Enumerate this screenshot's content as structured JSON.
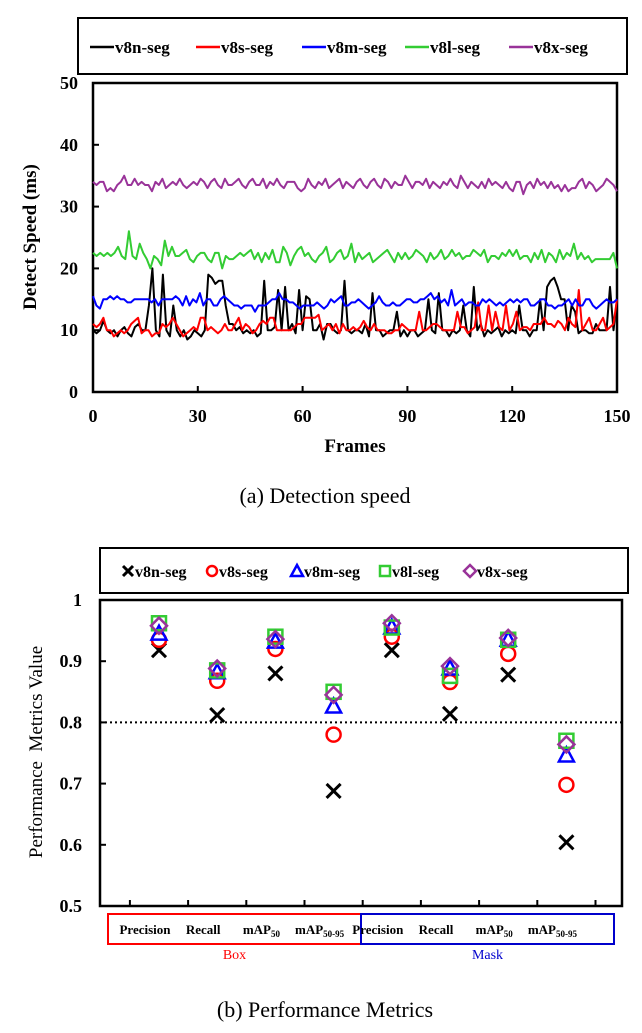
{
  "chart_data": [
    {
      "type": "line",
      "title": "",
      "caption": "(a) Detection speed",
      "xlabel": "Frames",
      "ylabel": "Detect Speed (ms)",
      "xlim": [
        0,
        150
      ],
      "ylim": [
        0,
        50
      ],
      "xticks": [
        "0",
        "30",
        "60",
        "90",
        "120",
        "150"
      ],
      "yticks": [
        "0",
        "10",
        "20",
        "30",
        "40",
        "50"
      ],
      "grid": false,
      "legend_position": "top (outside, boxed)",
      "series": [
        {
          "name": "v8n-seg",
          "color": "#000000",
          "values": [
            10,
            9.5,
            10,
            11.5,
            10,
            9.5,
            10,
            9,
            10,
            10.5,
            9.5,
            9,
            10.5,
            11,
            10,
            10,
            14,
            20,
            10,
            9,
            19,
            10,
            9,
            14,
            10,
            9,
            10,
            8.5,
            9,
            10,
            9.5,
            9,
            10,
            19,
            18.5,
            17.5,
            18,
            18,
            14,
            11,
            11,
            10,
            10.5,
            9.5,
            10,
            9.5,
            10,
            9,
            9.5,
            18,
            10,
            10,
            10.5,
            16.5,
            10,
            17,
            10,
            11,
            9.5,
            16.5,
            10,
            15.5,
            15,
            10,
            10,
            11,
            8.5,
            11,
            11,
            10,
            9.5,
            10,
            18,
            10,
            9.5,
            10,
            10,
            9.5,
            11,
            9,
            16,
            10,
            10,
            9,
            9.5,
            10,
            10,
            13,
            9,
            10,
            9,
            10,
            10,
            9,
            9.5,
            10,
            15,
            10,
            9.5,
            16,
            10,
            10,
            9,
            10,
            9.5,
            10,
            14,
            10,
            9,
            17,
            10,
            11,
            9,
            10,
            9.5,
            10,
            10.5,
            9,
            10,
            9.5,
            10,
            9.5,
            14,
            10,
            10,
            9,
            10,
            10,
            15,
            10,
            17,
            18,
            18.5,
            17,
            15,
            15,
            10,
            14,
            13,
            9.5,
            10,
            10,
            9.5,
            9.5,
            11,
            10,
            10,
            10,
            17,
            10,
            15
          ],
          "_note": "approximate: 150 frames, spiky between ~9 and ~20 ms"
        },
        {
          "name": "v8s-seg",
          "color": "#ff0000",
          "values": [
            11,
            10.5,
            11,
            12,
            10,
            10,
            9,
            9.5,
            10,
            9.5,
            10,
            11,
            11.5,
            12,
            9.5,
            10,
            10,
            9,
            9.5,
            9.5,
            11,
            10.5,
            11,
            12,
            11,
            10,
            9,
            9.5,
            10,
            10.5,
            10,
            12,
            12,
            10,
            10.5,
            10,
            9.5,
            10,
            11,
            10,
            10,
            11,
            12,
            10,
            11,
            10.5,
            9.5,
            10,
            11,
            11.5,
            11,
            12,
            12,
            10,
            10,
            10,
            10,
            10,
            10.5,
            11,
            11,
            12,
            12,
            12,
            12,
            12.5,
            10,
            10.5,
            11,
            10,
            11,
            9.5,
            11,
            10,
            10,
            10.5,
            10,
            10.5,
            11.5,
            10.5,
            10,
            11,
            10,
            10,
            10,
            9.5,
            9.5,
            10,
            10,
            11,
            10.5,
            10,
            10,
            10,
            13,
            10,
            10,
            10.5,
            11,
            11,
            10.5,
            10,
            10,
            10,
            10,
            13,
            10.5,
            10.5,
            9.5,
            10,
            10.5,
            14.5,
            10,
            10,
            14,
            10,
            13,
            10.5,
            10,
            14,
            10,
            11,
            13,
            10,
            10.5,
            10.5,
            10,
            11,
            11,
            11,
            12,
            11,
            11,
            10.5,
            11.5,
            11,
            10,
            12,
            11,
            10.5,
            16.5,
            10,
            11,
            12,
            10,
            10,
            11,
            12,
            10,
            10.5,
            11,
            15
          ],
          "_note": "approximate: baseline ~10-12 ms with spikes to ~17 ms late"
        },
        {
          "name": "v8m-seg",
          "color": "#0000ff",
          "values": [
            15.5,
            14,
            13.5,
            15,
            15,
            15.5,
            15,
            15.5,
            15,
            15,
            14.5,
            14.5,
            15,
            15,
            15,
            15,
            15,
            14.5,
            15,
            14,
            15,
            15,
            15,
            15,
            15.5,
            15,
            14,
            15.5,
            14,
            15,
            14.5,
            16,
            14,
            15,
            15,
            14,
            14,
            15,
            15.5,
            15,
            14.5,
            14,
            14,
            13.5,
            14,
            14,
            14,
            13,
            14,
            14,
            14,
            14.5,
            15,
            15,
            16,
            15,
            15,
            14.5,
            14.5,
            14,
            13.5,
            14,
            14,
            14,
            14,
            14.5,
            14,
            13.5,
            14,
            15,
            14.5,
            15,
            15.5,
            14,
            14,
            14.5,
            14.5,
            15,
            14.5,
            14,
            13.5,
            14,
            14.5,
            15.5,
            14.5,
            14,
            14,
            14.5,
            14,
            14,
            14.5,
            15,
            15,
            14.5,
            14.5,
            15,
            15,
            15.5,
            16,
            15,
            15.5,
            14.5,
            15,
            14,
            16.5,
            14,
            14.5,
            15,
            14,
            14.5,
            14.5,
            14,
            14,
            15,
            14.5,
            15,
            14.5,
            14,
            14.5,
            14,
            14.5,
            15,
            14.5,
            15,
            14.5,
            15,
            15,
            14,
            14,
            14.5,
            15,
            15,
            14,
            14,
            13.5,
            14,
            14,
            14.5,
            15,
            14,
            15,
            14,
            14,
            15,
            15,
            14,
            13.5,
            14,
            14.5,
            15,
            14.5,
            14.5,
            15
          ],
          "_note": "approximate: steady ~14-16 ms"
        },
        {
          "name": "v8l-seg",
          "color": "#33cc33",
          "values": [
            22.5,
            22,
            22.5,
            22,
            22.5,
            22,
            22.5,
            23.5,
            22,
            21.5,
            26,
            22,
            21.5,
            24,
            22.5,
            21.5,
            20,
            22,
            21.5,
            20.5,
            24.5,
            22,
            23.5,
            22,
            22,
            22.5,
            23,
            21.5,
            21,
            22,
            22.5,
            22.5,
            21.5,
            21,
            22.5,
            22.5,
            20,
            22,
            21.5,
            21.5,
            22,
            22.5,
            22,
            22.5,
            23,
            21.5,
            22.5,
            21,
            22.5,
            21.5,
            23,
            21,
            21,
            23.5,
            22.5,
            20.5,
            22,
            23,
            23.5,
            22,
            22.5,
            21.5,
            21,
            22,
            22.5,
            23.5,
            21,
            21.5,
            22.5,
            23,
            21.5,
            22,
            24,
            21,
            22.5,
            21.5,
            22,
            22.5,
            21,
            21.5,
            22,
            22.5,
            23,
            22,
            21,
            22.5,
            21.5,
            22.5,
            21.5,
            22,
            23,
            22.5,
            22,
            21,
            22.5,
            21.5,
            22,
            23,
            21.5,
            22,
            23,
            22,
            22.5,
            21.5,
            22,
            22,
            23,
            22.5,
            22,
            23,
            21,
            22,
            22,
            21.5,
            22.5,
            22,
            23,
            22,
            23,
            21.5,
            22,
            22,
            21,
            22.5,
            21.5,
            23,
            21,
            22.5,
            22,
            21,
            23,
            21.5,
            22.5,
            22,
            24,
            21.5,
            22.5,
            21.5,
            22,
            21,
            21.5,
            21.5,
            21.5,
            21.5,
            21.5,
            22.5,
            20
          ],
          "_note": "approximate: ~21-23 ms, peak ~26 ms at frame ~9"
        },
        {
          "name": "v8x-seg",
          "color": "#993399",
          "values": [
            34,
            33.5,
            34,
            34,
            32.5,
            33,
            32.5,
            33.5,
            34,
            35,
            33.5,
            33.5,
            34.5,
            33.5,
            34,
            33.5,
            33.5,
            32.5,
            34,
            33.5,
            34.5,
            33,
            33.5,
            34,
            33.5,
            34.5,
            33.5,
            33,
            33.5,
            34,
            33.5,
            34.5,
            34,
            33,
            34,
            34.5,
            33.5,
            33,
            34.5,
            33.5,
            33.5,
            34,
            34.5,
            33.5,
            33,
            34,
            34.5,
            33.5,
            33.5,
            34.5,
            33,
            34,
            33.5,
            34.5,
            33.5,
            33,
            34,
            34,
            34,
            33,
            32.5,
            33,
            34.5,
            33.5,
            33,
            34,
            33.5,
            34.5,
            33,
            33.5,
            34,
            34.5,
            33,
            34,
            33.5,
            33,
            34,
            34.5,
            33.5,
            33,
            34,
            34.5,
            33.5,
            33,
            34.5,
            34,
            33,
            34,
            33.5,
            33.5,
            35,
            34,
            33,
            34,
            34,
            33.5,
            34.5,
            33,
            34,
            33.5,
            33,
            34,
            33.5,
            34.5,
            33.5,
            33,
            35,
            34,
            33,
            34,
            33.5,
            33,
            34,
            33,
            34.5,
            33.5,
            34,
            33.5,
            33,
            34,
            33,
            32.5,
            34,
            34,
            32,
            33.5,
            34,
            33,
            34.5,
            33.5,
            34,
            33,
            34,
            33,
            33.5,
            32.5,
            33.5,
            32.5,
            33,
            33,
            34,
            34.5,
            33,
            34,
            33.5,
            32.5,
            33,
            33.5,
            34.5,
            34,
            33.5,
            32.5
          ],
          "_note": "approximate: ~32-35 ms"
        }
      ]
    },
    {
      "type": "scatter",
      "title": "",
      "caption": "(b) Performance Metrics",
      "xlabel": "",
      "ylabel": "Performance  Metrics Value",
      "ylim": [
        0.5,
        1.0
      ],
      "yticks": [
        "0.5",
        "0.6",
        "0.7",
        "0.8",
        "0.9",
        "1"
      ],
      "reference_line": {
        "y": 0.8,
        "style": "dotted"
      },
      "grid": false,
      "legend_position": "top (outside, boxed)",
      "categories": [
        {
          "label": "Precision",
          "sub": ""
        },
        {
          "label": "Recall",
          "sub": ""
        },
        {
          "label": "mAP",
          "sub": "50"
        },
        {
          "label": "mAP",
          "sub": "50-95"
        },
        {
          "label": "Precision",
          "sub": ""
        },
        {
          "label": "Recall",
          "sub": ""
        },
        {
          "label": "mAP",
          "sub": "50"
        },
        {
          "label": "mAP",
          "sub": "50-95"
        }
      ],
      "groups": [
        {
          "name": "Box",
          "color": "#ff0000",
          "span": [
            0,
            3
          ]
        },
        {
          "name": "Mask",
          "color": "#0000cc",
          "span": [
            4,
            7
          ]
        }
      ],
      "series": [
        {
          "name": "v8n-seg",
          "marker": "x",
          "color": "#000000",
          "values": [
            0.918,
            0.812,
            0.88,
            0.688,
            0.918,
            0.814,
            0.878,
            0.604
          ]
        },
        {
          "name": "v8s-seg",
          "marker": "circle",
          "color": "#ff0000",
          "values": [
            0.935,
            0.868,
            0.92,
            0.78,
            0.94,
            0.866,
            0.912,
            0.698
          ]
        },
        {
          "name": "v8m-seg",
          "marker": "triangle",
          "color": "#0000ff",
          "values": [
            0.945,
            0.882,
            0.932,
            0.826,
            0.955,
            0.888,
            0.935,
            0.746
          ]
        },
        {
          "name": "v8l-seg",
          "marker": "square",
          "color": "#33cc33",
          "values": [
            0.962,
            0.885,
            0.94,
            0.85,
            0.955,
            0.876,
            0.935,
            0.77
          ]
        },
        {
          "name": "v8x-seg",
          "marker": "diamond",
          "color": "#993399",
          "values": [
            0.958,
            0.888,
            0.936,
            0.845,
            0.962,
            0.892,
            0.938,
            0.764
          ]
        }
      ]
    }
  ]
}
